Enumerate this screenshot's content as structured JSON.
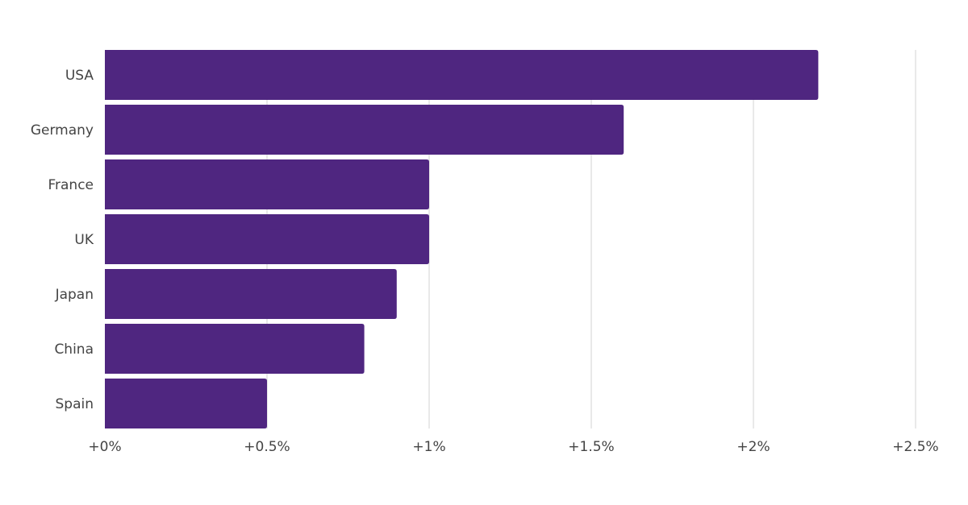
{
  "chart_data": {
    "type": "bar",
    "orientation": "horizontal",
    "categories": [
      "USA",
      "Germany",
      "France",
      "UK",
      "Japan",
      "China",
      "Spain"
    ],
    "values": [
      2.2,
      1.6,
      1.0,
      1.0,
      0.9,
      0.8,
      0.5
    ],
    "xlim": [
      0,
      2.5
    ],
    "x_ticks": [
      0,
      0.5,
      1,
      1.5,
      2,
      2.5
    ],
    "x_tick_labels": [
      "+0%",
      "+0.5%",
      "+1%",
      "+1.5%",
      "+2%",
      "+2.5%"
    ],
    "title": "",
    "xlabel": "",
    "ylabel": "",
    "grid": true,
    "legend": "none",
    "bar_color": "#4f2680"
  }
}
